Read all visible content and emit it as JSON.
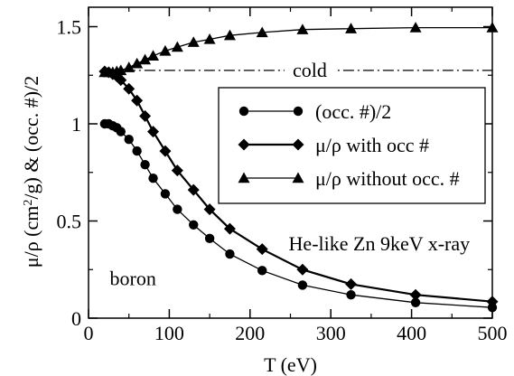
{
  "chart_data": {
    "type": "line",
    "xlabel": "T (eV)",
    "ylabel_parts": [
      "μ/ρ (cm",
      "2",
      "/g) & (occ. #)/2"
    ],
    "xlim": [
      0,
      500
    ],
    "ylim": [
      0,
      1.6
    ],
    "x_ticks": [
      0,
      100,
      200,
      300,
      400,
      500
    ],
    "x_tick_labels": [
      "0",
      "100",
      "200",
      "300",
      "400",
      "500"
    ],
    "y_ticks": [
      0,
      0.5,
      1,
      1.5
    ],
    "y_tick_labels": [
      "0",
      "0.5",
      "1",
      "1.5"
    ],
    "grid": false,
    "legend_position": "upper-right",
    "series": [
      {
        "name": "(occ. #)/2",
        "marker": "circle",
        "x": [
          20,
          25,
          30,
          35,
          40,
          50,
          60,
          70,
          80,
          95,
          110,
          130,
          150,
          175,
          215,
          265,
          325,
          405,
          500
        ],
        "y": [
          1.0,
          1.0,
          0.99,
          0.98,
          0.96,
          0.92,
          0.86,
          0.79,
          0.72,
          0.64,
          0.56,
          0.48,
          0.41,
          0.33,
          0.245,
          0.17,
          0.12,
          0.08,
          0.055
        ]
      },
      {
        "name": "μ/ρ with occ #",
        "marker": "diamond",
        "x": [
          20,
          25,
          30,
          35,
          40,
          50,
          60,
          70,
          80,
          95,
          110,
          130,
          150,
          175,
          215,
          265,
          325,
          405,
          500
        ],
        "y": [
          1.27,
          1.265,
          1.255,
          1.245,
          1.225,
          1.18,
          1.12,
          1.04,
          0.96,
          0.86,
          0.76,
          0.66,
          0.56,
          0.46,
          0.355,
          0.25,
          0.175,
          0.12,
          0.085
        ]
      },
      {
        "name": "μ/ρ without occ. #",
        "marker": "triangle",
        "x": [
          20,
          25,
          30,
          35,
          40,
          50,
          60,
          70,
          80,
          95,
          110,
          130,
          150,
          175,
          215,
          265,
          325,
          405,
          500
        ],
        "y": [
          1.265,
          1.265,
          1.265,
          1.27,
          1.275,
          1.29,
          1.31,
          1.33,
          1.35,
          1.375,
          1.395,
          1.42,
          1.435,
          1.455,
          1.47,
          1.485,
          1.49,
          1.495,
          1.495
        ]
      }
    ],
    "reference_line": {
      "y": 1.275,
      "style": "dash-dot",
      "label": "cold"
    },
    "annotations": [
      {
        "text": "He-like Zn 9keV x-ray",
        "x": 360,
        "y": 0.35
      },
      {
        "text": "boron",
        "x": 55,
        "y": 0.17
      }
    ]
  }
}
